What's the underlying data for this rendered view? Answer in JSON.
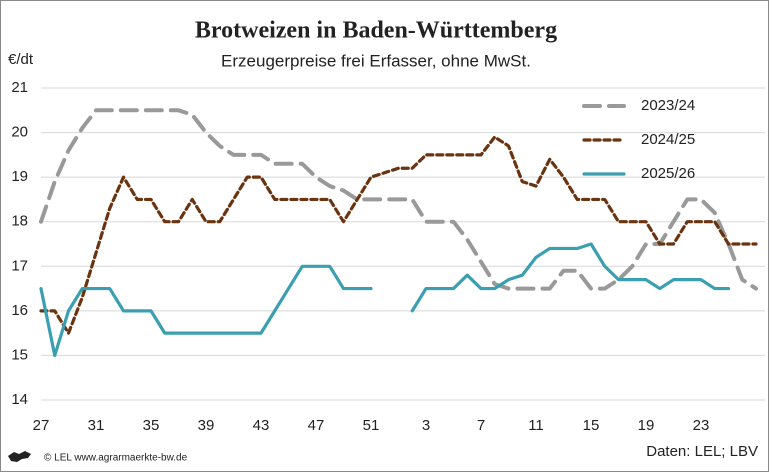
{
  "chart_data": {
    "type": "line",
    "title": "Brotweizen in Baden-Württemberg",
    "subtitle": "Erzeugerpreise frei Erfasser, ohne MwSt.",
    "y_label": "€/dt",
    "source": "Daten: LEL; LBV",
    "credit": "© LEL www.agrarmaerkte-bw.de",
    "categories": [
      "27",
      null,
      null,
      null,
      "31",
      null,
      null,
      null,
      "35",
      null,
      null,
      null,
      "39",
      null,
      null,
      null,
      "43",
      null,
      null,
      null,
      "47",
      null,
      null,
      null,
      "51",
      null,
      null,
      null,
      "3",
      null,
      null,
      null,
      "7",
      null,
      null,
      null,
      "11",
      null,
      null,
      null,
      "15",
      null,
      null,
      null,
      "19",
      null,
      null,
      null,
      "23",
      null,
      null,
      null,
      null
    ],
    "ylim": [
      14,
      21
    ],
    "yticks": [
      14,
      15,
      16,
      17,
      18,
      19,
      20,
      21
    ],
    "grid": true,
    "legend": "upper right",
    "series": [
      {
        "name": "2023/24",
        "color": "#999999",
        "style": "dashed",
        "values": [
          18.0,
          18.9,
          19.6,
          20.1,
          20.5,
          20.5,
          20.5,
          20.5,
          20.5,
          20.5,
          20.5,
          20.4,
          20.0,
          19.7,
          19.5,
          19.5,
          19.5,
          19.3,
          19.3,
          19.3,
          19.0,
          18.8,
          18.7,
          18.5,
          18.5,
          18.5,
          18.5,
          18.5,
          18.0,
          18.0,
          18.0,
          17.6,
          17.1,
          16.6,
          16.5,
          16.5,
          16.5,
          16.5,
          16.9,
          16.9,
          16.5,
          16.5,
          16.7,
          17.0,
          17.5,
          17.5,
          18.0,
          18.5,
          18.5,
          18.2,
          17.5,
          16.7,
          16.5
        ]
      },
      {
        "name": "2024/25",
        "color": "#6b3410",
        "style": "dotted",
        "values": [
          16.0,
          16.0,
          15.5,
          16.3,
          17.3,
          18.3,
          19.0,
          18.5,
          18.5,
          18.0,
          18.0,
          18.5,
          18.0,
          18.0,
          18.5,
          19.0,
          19.0,
          18.5,
          18.5,
          18.5,
          18.5,
          18.5,
          18.0,
          18.5,
          19.0,
          19.1,
          19.2,
          19.2,
          19.5,
          19.5,
          19.5,
          19.5,
          19.5,
          19.9,
          19.7,
          18.9,
          18.8,
          19.4,
          19.0,
          18.5,
          18.5,
          18.5,
          18.0,
          18.0,
          18.0,
          17.5,
          17.5,
          18.0,
          18.0,
          18.0,
          17.5,
          17.5,
          17.5
        ]
      },
      {
        "name": "2025/26",
        "color": "#3a9fb0",
        "style": "solid",
        "values": [
          16.5,
          15.0,
          16.0,
          16.5,
          16.5,
          16.5,
          16.0,
          16.0,
          16.0,
          15.5,
          15.5,
          15.5,
          15.5,
          15.5,
          15.5,
          15.5,
          15.5,
          16.0,
          16.5,
          17.0,
          17.0,
          17.0,
          16.5,
          16.5,
          16.5,
          null,
          null,
          16.0,
          16.5,
          16.5,
          16.5,
          16.8,
          16.5,
          16.5,
          16.7,
          16.8,
          17.2,
          17.4,
          17.4,
          17.4,
          17.5,
          17.0,
          16.7,
          16.7,
          16.7,
          16.5,
          16.7,
          16.7,
          16.7,
          16.5,
          16.5,
          null,
          null
        ]
      }
    ]
  }
}
